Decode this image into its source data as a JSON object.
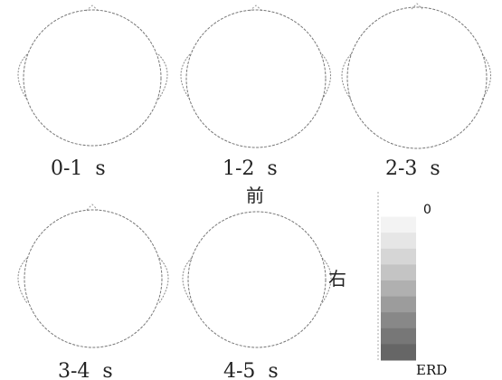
{
  "maps": [
    {
      "label": "0-1  s"
    },
    {
      "label": "1-2  s"
    },
    {
      "label": "2-3  s"
    },
    {
      "label": "3-4  s"
    },
    {
      "label": "4-5  s"
    }
  ],
  "orientation": {
    "front": "前",
    "right": "右"
  },
  "colorbar": {
    "top_label": "0",
    "bottom_label": "ERD",
    "levels": [
      "#ffffff",
      "#f3f3f3",
      "#e6e6e6",
      "#d6d6d6",
      "#c4c4c4",
      "#b0b0b0",
      "#9c9c9c",
      "#888888",
      "#777777",
      "#666666"
    ]
  }
}
